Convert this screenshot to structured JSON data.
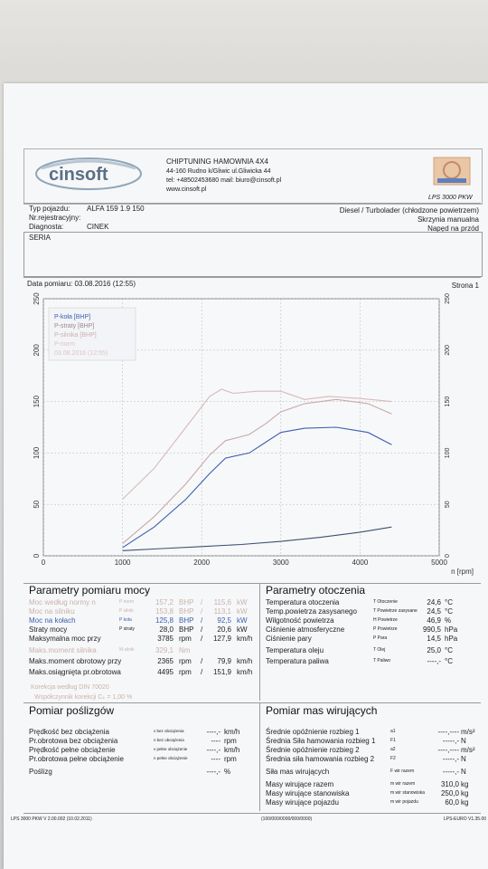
{
  "header": {
    "company": "CHIPTUNING HAMOWNIA 4X4",
    "address": "44-160 Rudno k/Gliwic ul.Gliwicka 44",
    "contact": "tel: +48502453680 mail: biuro@cinsoft.pl",
    "website": "www.cinsoft.pl",
    "logo_text": "cinsoft",
    "badge_text": "LPS 3000 PKW"
  },
  "vehicle": {
    "type_label": "Typ pojazdu:",
    "type_value": "ALFA 159 1.9 150",
    "reg_label": "Nr.rejestracyjny:",
    "reg_value": "",
    "diag_label": "Diagnosta:",
    "diag_value": "CINEK",
    "engine": "Diesel / Turbolader (chłodzone powietrzem)",
    "gearbox": "Skrzynia manualna",
    "drive": "Napęd na przód",
    "series_label": "SERIA"
  },
  "measurement": {
    "date_text": "Data pomiaru: 03.08.2016 (12:55)",
    "page_text": "Strona 1"
  },
  "chart_data": {
    "type": "line",
    "x_unit": "n [rpm]",
    "xlim": [
      0,
      5000
    ],
    "ylim": [
      0,
      250
    ],
    "x_ticks": [
      "0",
      "1000",
      "2000",
      "3000",
      "4000",
      "5000"
    ],
    "y_ticks": [
      "0",
      "50",
      "100",
      "150",
      "200",
      "250"
    ],
    "legend": [
      "P-koła [BHP]",
      "P-straty [BHP]",
      "P-silnika [BHP]",
      "P-norm",
      "03.08.2016 (12:55)"
    ],
    "series": [
      {
        "name": "P-koła [BHP]",
        "color": "#3d5fae",
        "x": [
          1000,
          1400,
          1800,
          2100,
          2300,
          2600,
          2800,
          3000,
          3300,
          3700,
          4100,
          4400
        ],
        "y": [
          8,
          28,
          55,
          80,
          95,
          100,
          110,
          120,
          124,
          125,
          120,
          108
        ]
      },
      {
        "name": "P-straty [BHP]",
        "color": "#3d5070",
        "x": [
          1000,
          1500,
          2000,
          2500,
          3000,
          3500,
          4000,
          4400
        ],
        "y": [
          5,
          7,
          9,
          11,
          14,
          18,
          23,
          28
        ]
      },
      {
        "name": "P-silnika [BHP]",
        "color": "#c9a8a8",
        "x": [
          1000,
          1400,
          1800,
          2100,
          2300,
          2600,
          2800,
          3000,
          3300,
          3700,
          4100,
          4400
        ],
        "y": [
          12,
          38,
          70,
          98,
          112,
          118,
          128,
          140,
          148,
          152,
          148,
          138
        ]
      },
      {
        "name": "P-norm",
        "color": "#d9b9b9",
        "x": [
          1000,
          1400,
          1800,
          2100,
          2250,
          2400,
          2700,
          3000,
          3300,
          3600,
          4000,
          4400
        ],
        "y": [
          55,
          85,
          125,
          155,
          162,
          158,
          160,
          160,
          152,
          155,
          153,
          150
        ]
      }
    ]
  },
  "power": {
    "title": "Parametry pomiaru mocy",
    "rows": [
      {
        "label": "Moc według normy n",
        "sym": "P norm",
        "v1": "157,2",
        "u1": "BHP",
        "v2": "115,6",
        "u2": "kW"
      },
      {
        "label": "Moc na silniku",
        "sym": "P silnik",
        "v1": "153,8",
        "u1": "BHP",
        "v2": "113,1",
        "u2": "kW"
      },
      {
        "label": "Moc na kołach",
        "sym": "P koła",
        "v1": "125,8",
        "u1": "BHP",
        "v2": "92,5",
        "u2": "kW"
      },
      {
        "label": "Straty mocy",
        "sym": "P straty",
        "v1": "28,0",
        "u1": "BHP",
        "v2": "20,6",
        "u2": "kW"
      },
      {
        "label": "Maksymalna moc przy",
        "sym": "",
        "v1": "3785",
        "u1": "rpm",
        "v2": "127,9",
        "u2": "km/h"
      },
      {
        "label": "Maks.moment silnika",
        "sym": "M silnik",
        "v1": "329,1",
        "u1": "Nm",
        "v2": "",
        "u2": ""
      },
      {
        "label": "Maks.moment obrotowy przy",
        "sym": "",
        "v1": "2365",
        "u1": "rpm",
        "v2": "79,9",
        "u2": "km/h"
      },
      {
        "label": "Maks.osiągnięta pr.obrotowa",
        "sym": "",
        "v1": "4495",
        "u1": "rpm",
        "v2": "151,9",
        "u2": "km/h"
      }
    ],
    "norm_note": "Korekcja według DIN 70020",
    "corr_note": "Współczynnik korekcji  Cₖ = 1,00 %"
  },
  "environment": {
    "title": "Parametry otoczenia",
    "rows": [
      {
        "label": "Temperatura otoczenia",
        "sym": "T Otoczenie",
        "val": "24,6",
        "unit": "°C"
      },
      {
        "label": "Temp.powietrza zasysanego",
        "sym": "T Powietrze zasysane",
        "val": "24,5",
        "unit": "°C"
      },
      {
        "label": "Wilgotność powietrza",
        "sym": "H Powietrze",
        "val": "46,9",
        "unit": "%"
      },
      {
        "label": "Ciśnienie atmosferyczne",
        "sym": "P Powietrze",
        "val": "990,5",
        "unit": "hPa"
      },
      {
        "label": "Ciśnienie pary",
        "sym": "P Para",
        "val": "14,5",
        "unit": "hPa"
      },
      {
        "label": "Temperatura oleju",
        "sym": "T Olej",
        "val": "25,0",
        "unit": "°C"
      },
      {
        "label": "Temperatura paliwa",
        "sym": "T Paliwo",
        "val": "----,-",
        "unit": "°C"
      }
    ]
  },
  "slip": {
    "title": "Pomiar poślizgów",
    "rows": [
      {
        "label": "Prędkość bez obciążenia",
        "sym": "v bez obciążenia",
        "val": "----,-",
        "unit": "km/h"
      },
      {
        "label": "Pr.obrotowa bez obciążenia",
        "sym": "n bez obciążenia",
        "val": "----",
        "unit": "rpm"
      },
      {
        "label": "Prędkość pełne obciążenie",
        "sym": "v pełne obciążenie",
        "val": "----,-",
        "unit": "km/h"
      },
      {
        "label": "Pr.obrotowa pełne obciążenie",
        "sym": "n pełne obciążenie",
        "val": "----",
        "unit": "rpm"
      },
      {
        "label": "Poślizg",
        "sym": "",
        "val": "----,-",
        "unit": "%"
      }
    ]
  },
  "masses": {
    "title": "Pomiar mas wirujących",
    "rows": [
      {
        "label": "Średnie opóźnienie rozbieg 1",
        "sym": "a1",
        "val": "----,----",
        "unit": "m/s²"
      },
      {
        "label": "Średnia Siła hamowania rozbieg 1",
        "sym": "F1",
        "val": "-----,-",
        "unit": "N"
      },
      {
        "label": "Średnie opóźnienie rozbieg 2",
        "sym": "a2",
        "val": "----,----",
        "unit": "m/s²"
      },
      {
        "label": "Średnia siła hamowania rozbieg 2",
        "sym": "F2",
        "val": "-----,-",
        "unit": "N"
      },
      {
        "label": "Siła mas wirujących",
        "sym": "F wir razem",
        "val": "-----,-",
        "unit": "N"
      },
      {
        "label": "Masy wirujące razem",
        "sym": "m wir razem",
        "val": "310,0",
        "unit": "kg"
      },
      {
        "label": "Masy wirujące stanowiska",
        "sym": "m wir stanowiska",
        "val": "250,0",
        "unit": "kg"
      },
      {
        "label": "Masy wirujące pojazdu",
        "sym": "m wir pojazdu",
        "val": "60,0",
        "unit": "kg"
      }
    ]
  },
  "footer": {
    "left": "LPS 3000 PKW V 2.00.002 (10.02.2011)",
    "mid": "(100/000/0000/000/0000)",
    "right": "LPS-EURO V1.35.00"
  }
}
